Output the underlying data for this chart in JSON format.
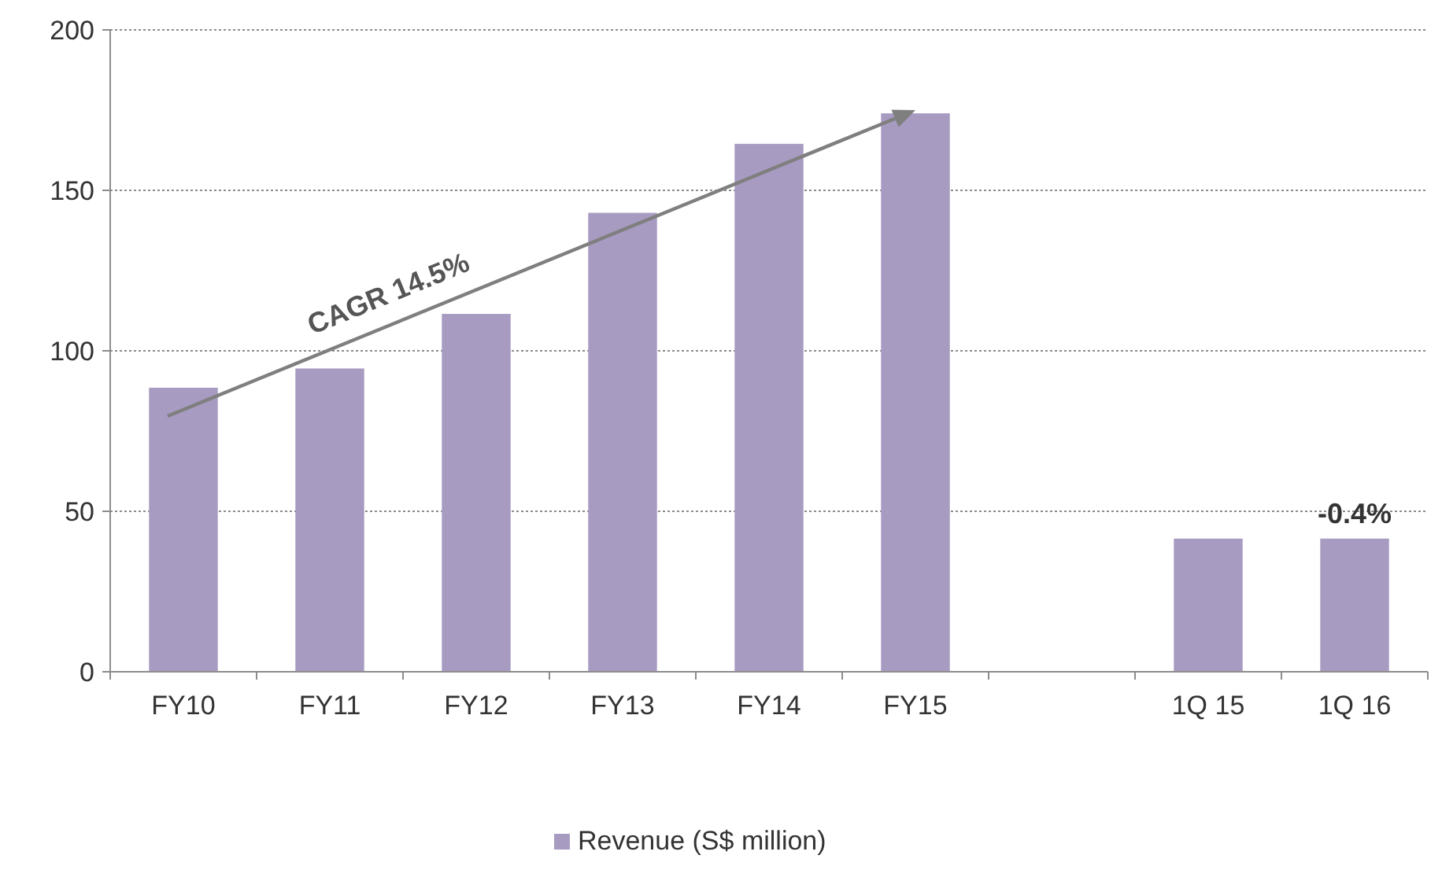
{
  "chart_data": {
    "type": "bar",
    "categories": [
      "FY10",
      "FY11",
      "FY12",
      "FY13",
      "FY14",
      "FY15",
      null,
      "1Q 15",
      "1Q 16"
    ],
    "series": [
      {
        "name": "Revenue (S$ million)",
        "color": "#a89bc2",
        "values": [
          88.5,
          94.5,
          111.5,
          143,
          164.5,
          174,
          null,
          41.5,
          41.5
        ]
      }
    ],
    "ylim": [
      0,
      200
    ],
    "yticks": [
      0,
      50,
      100,
      150,
      200
    ],
    "grid": "y",
    "legend": "bottom",
    "annotations": [
      "CAGR 14.5%",
      {
        "text": "-0.4%",
        "x": "1Q 16",
        "y": 41.5
      }
    ]
  }
}
